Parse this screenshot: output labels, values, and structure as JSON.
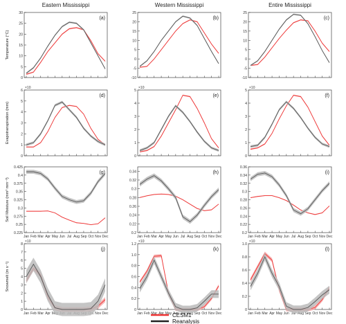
{
  "figure": {
    "legend": [
      {
        "label": "CESM1",
        "color": "#ee3333"
      },
      {
        "label": "Reanalysis",
        "color": "#222222"
      }
    ],
    "colors": {
      "cesm": "#ee3333",
      "cesm_band": "#f5a8a8",
      "rean": "#555555",
      "rean_band": "#bbbbbb",
      "axis": "#444444"
    }
  },
  "chart_data": [
    {
      "type": "line",
      "id": "a",
      "panel_label": "(a)",
      "title": "Eastern Mississippi",
      "ylabel": "Temperature (°C)",
      "exponent": "",
      "ylim": [
        0,
        30
      ],
      "yticks": [
        0,
        5,
        10,
        15,
        20,
        25,
        30
      ],
      "ytick_labels": [
        "0",
        "5",
        "10",
        "15",
        "20",
        "25",
        "30"
      ],
      "xticklabels": false,
      "series": [
        {
          "name": "CESM1",
          "values": [
            1.5,
            2.5,
            7,
            12,
            16,
            20,
            22.5,
            23,
            22,
            17,
            11,
            7.5
          ],
          "band": 0.3
        },
        {
          "name": "Reanalysis",
          "values": [
            2,
            4.5,
            9,
            14.5,
            19.5,
            23.5,
            25.5,
            25,
            22,
            16,
            10,
            4
          ],
          "band": 0.4
        }
      ]
    },
    {
      "type": "line",
      "id": "b",
      "panel_label": "(b)",
      "title": "Western Mississippi",
      "ylabel": "",
      "exponent": "",
      "ylim": [
        -10,
        25
      ],
      "yticks": [
        -10,
        -5,
        0,
        5,
        10,
        15,
        20,
        25
      ],
      "ytick_labels": [
        "-10",
        "-5",
        "0",
        "5",
        "10",
        "15",
        "20",
        "25"
      ],
      "xticklabels": false,
      "series": [
        {
          "name": "CESM1",
          "values": [
            -4.5,
            -4,
            0,
            5,
            10,
            15,
            19,
            21,
            20,
            14,
            8,
            3
          ],
          "band": 0.3
        },
        {
          "name": "Reanalysis",
          "values": [
            -4,
            -1,
            4,
            10,
            15,
            20,
            23,
            22,
            18,
            11,
            4,
            -2.5
          ],
          "band": 0.4
        }
      ]
    },
    {
      "type": "line",
      "id": "c",
      "panel_label": "(c)",
      "title": "Entire Mississippi",
      "ylabel": "",
      "exponent": "",
      "ylim": [
        -10,
        25
      ],
      "yticks": [
        -10,
        -5,
        0,
        5,
        10,
        15,
        20,
        25
      ],
      "ytick_labels": [
        "-10",
        "-5",
        "0",
        "5",
        "10",
        "15",
        "20",
        "25"
      ],
      "xticklabels": false,
      "series": [
        {
          "name": "CESM1",
          "values": [
            -3.5,
            -3,
            1,
            6,
            11,
            15.5,
            19.5,
            21,
            20.5,
            15,
            8.5,
            4
          ],
          "band": 0.3
        },
        {
          "name": "Reanalysis",
          "values": [
            -3.5,
            -1,
            4,
            10,
            16,
            21,
            24,
            23.5,
            19,
            12,
            4.5,
            -2
          ],
          "band": 0.4
        }
      ]
    },
    {
      "type": "line",
      "id": "d",
      "panel_label": "(d)",
      "title": "",
      "ylabel": "Evapotranspiration (mm)",
      "exponent": "×10",
      "ylim": [
        0,
        6
      ],
      "yticks": [
        0,
        1,
        2,
        3,
        4,
        5,
        6
      ],
      "ytick_labels": [
        "0",
        "1",
        "2",
        "3",
        "4",
        "5",
        "6"
      ],
      "xticklabels": false,
      "series": [
        {
          "name": "CESM1",
          "values": [
            0.8,
            0.8,
            1.2,
            2.2,
            3.5,
            4.4,
            4.6,
            4.5,
            3.8,
            2.5,
            1.5,
            1.0
          ],
          "band": 0.05
        },
        {
          "name": "Reanalysis",
          "values": [
            1.0,
            1.2,
            2.0,
            3.2,
            4.6,
            4.9,
            4.2,
            3.5,
            2.5,
            1.8,
            1.3,
            1.0
          ],
          "band": 0.12
        }
      ]
    },
    {
      "type": "line",
      "id": "e",
      "panel_label": "(e)",
      "title": "",
      "ylabel": "",
      "exponent": "×10",
      "ylim": [
        0,
        5
      ],
      "yticks": [
        0,
        1,
        2,
        3,
        4,
        5
      ],
      "ytick_labels": [
        "0",
        "1",
        "2",
        "3",
        "4",
        "5"
      ],
      "xticklabels": false,
      "series": [
        {
          "name": "CESM1",
          "values": [
            0.3,
            0.4,
            0.7,
            1.5,
            2.5,
            3.5,
            4.6,
            4.5,
            3.6,
            2.5,
            1.3,
            0.6
          ],
          "band": 0.05
        },
        {
          "name": "Reanalysis",
          "values": [
            0.4,
            0.6,
            1.0,
            2.0,
            3.0,
            3.8,
            3.3,
            2.6,
            1.8,
            1.1,
            0.6,
            0.4
          ],
          "band": 0.1
        }
      ]
    },
    {
      "type": "line",
      "id": "f",
      "panel_label": "(f)",
      "title": "",
      "ylabel": "",
      "exponent": "×10",
      "ylim": [
        0,
        5
      ],
      "yticks": [
        0,
        1,
        2,
        3,
        4,
        5
      ],
      "ytick_labels": [
        "0",
        "1",
        "2",
        "3",
        "4",
        "5"
      ],
      "xticklabels": false,
      "series": [
        {
          "name": "CESM1",
          "values": [
            0.5,
            0.6,
            0.9,
            1.7,
            2.8,
            3.8,
            4.6,
            4.5,
            3.7,
            2.6,
            1.5,
            0.8
          ],
          "band": 0.05
        },
        {
          "name": "Reanalysis",
          "values": [
            0.7,
            0.8,
            1.4,
            2.4,
            3.5,
            4.1,
            3.6,
            2.9,
            2.1,
            1.4,
            0.9,
            0.7
          ],
          "band": 0.1
        }
      ]
    },
    {
      "type": "line",
      "id": "g",
      "panel_label": "(g)",
      "title": "",
      "ylabel": "Soil Moisture (mm³ mm⁻³)",
      "exponent": "",
      "ylim": [
        0.225,
        0.425
      ],
      "yticks": [
        0.225,
        0.25,
        0.275,
        0.3,
        0.325,
        0.35,
        0.375,
        0.4,
        0.425
      ],
      "ytick_labels": [
        "0.225",
        "0.25",
        "0.275",
        "0.3",
        "0.325",
        "0.35",
        "0.375",
        "0.4",
        "0.425"
      ],
      "xticklabels": true,
      "series": [
        {
          "name": "CESM1",
          "values": [
            0.29,
            0.29,
            0.29,
            0.291,
            0.285,
            0.272,
            0.263,
            0.255,
            0.253,
            0.249,
            0.252,
            0.27
          ],
          "band": 0.001
        },
        {
          "name": "Reanalysis",
          "values": [
            0.41,
            0.41,
            0.405,
            0.388,
            0.36,
            0.335,
            0.325,
            0.318,
            0.322,
            0.345,
            0.38,
            0.405
          ],
          "band": 0.006
        }
      ]
    },
    {
      "type": "line",
      "id": "h",
      "panel_label": "(h)",
      "title": "",
      "ylabel": "",
      "exponent": "",
      "ylim": [
        0.2,
        0.35
      ],
      "yticks": [
        0.2,
        0.22,
        0.24,
        0.26,
        0.28,
        0.3,
        0.32,
        0.34
      ],
      "ytick_labels": [
        "0.2",
        "0.22",
        "0.24",
        "0.26",
        "0.28",
        "0.3",
        "0.32",
        "0.34"
      ],
      "xticklabels": true,
      "series": [
        {
          "name": "CESM1",
          "values": [
            0.28,
            0.284,
            0.287,
            0.288,
            0.287,
            0.283,
            0.275,
            0.265,
            0.255,
            0.25,
            0.252,
            0.265
          ],
          "band": 0.001
        },
        {
          "name": "Reanalysis",
          "values": [
            0.31,
            0.322,
            0.33,
            0.318,
            0.3,
            0.28,
            0.236,
            0.225,
            0.24,
            0.262,
            0.282,
            0.298
          ],
          "band": 0.005
        }
      ]
    },
    {
      "type": "line",
      "id": "i",
      "panel_label": "(i)",
      "title": "",
      "ylabel": "",
      "exponent": "",
      "ylim": [
        0.2,
        0.36
      ],
      "yticks": [
        0.2,
        0.22,
        0.24,
        0.26,
        0.28,
        0.3,
        0.32,
        0.34,
        0.36
      ],
      "ytick_labels": [
        "0.2",
        "0.22",
        "0.24",
        "0.26",
        "0.28",
        "0.3",
        "0.32",
        "0.34",
        "0.36"
      ],
      "xticklabels": true,
      "series": [
        {
          "name": "CESM1",
          "values": [
            0.285,
            0.288,
            0.29,
            0.29,
            0.285,
            0.278,
            0.267,
            0.255,
            0.248,
            0.244,
            0.248,
            0.265
          ],
          "band": 0.001
        },
        {
          "name": "Reanalysis",
          "values": [
            0.33,
            0.342,
            0.345,
            0.336,
            0.316,
            0.29,
            0.255,
            0.246,
            0.258,
            0.28,
            0.302,
            0.32
          ],
          "band": 0.005
        }
      ]
    },
    {
      "type": "line",
      "id": "j",
      "panel_label": "(j)",
      "title": "",
      "ylabel": "Snowmelt (m s⁻¹)",
      "exponent": "×10",
      "ylim": [
        0,
        8
      ],
      "yticks": [
        0,
        1,
        2,
        3,
        4,
        5,
        6,
        7,
        8
      ],
      "ytick_labels": [
        "0",
        "1",
        "2",
        "3",
        "4",
        "5",
        "6",
        "7",
        "8"
      ],
      "xticklabels": true,
      "series": [
        {
          "name": "CESM1",
          "values": [
            3.5,
            5.0,
            4.2,
            1.5,
            0.2,
            0.0,
            0.0,
            0.0,
            0.0,
            0.05,
            0.4,
            1.2
          ],
          "band": 0.3
        },
        {
          "name": "Reanalysis",
          "values": [
            4.0,
            5.5,
            4.0,
            1.8,
            0.2,
            0.0,
            0.0,
            0.0,
            0.0,
            0.1,
            1.0,
            3.0
          ],
          "band": 0.8
        }
      ]
    },
    {
      "type": "line",
      "id": "k",
      "panel_label": "(k)",
      "title": "",
      "ylabel": "",
      "exponent": "×10",
      "ylim": [
        0,
        1.2
      ],
      "yticks": [
        0,
        0.2,
        0.4,
        0.6,
        0.8,
        1.0,
        1.2
      ],
      "ytick_labels": [
        "0",
        "0.2",
        "0.4",
        "0.6",
        "0.8",
        "1.0",
        "1.2"
      ],
      "xticklabels": true,
      "series": [
        {
          "name": "CESM1",
          "values": [
            0.5,
            0.7,
            0.97,
            0.98,
            0.3,
            0.0,
            0.0,
            0.0,
            0.0,
            0.05,
            0.2,
            0.43
          ],
          "band": 0.03
        },
        {
          "name": "Reanalysis",
          "values": [
            0.38,
            0.6,
            0.9,
            0.6,
            0.3,
            0.05,
            0.0,
            0.0,
            0.03,
            0.15,
            0.28,
            0.28
          ],
          "band": 0.07
        }
      ]
    },
    {
      "type": "line",
      "id": "l",
      "panel_label": "(l)",
      "title": "",
      "ylabel": "",
      "exponent": "×10",
      "ylim": [
        0,
        1.0
      ],
      "yticks": [
        0,
        0.2,
        0.4,
        0.6,
        0.8,
        1.0
      ],
      "ytick_labels": [
        "0",
        "0.2",
        "0.4",
        "0.6",
        "0.8",
        "1.0"
      ],
      "xticklabels": true,
      "series": [
        {
          "name": "CESM1",
          "values": [
            0.45,
            0.65,
            0.85,
            0.75,
            0.3,
            0.0,
            0.0,
            0.0,
            0.0,
            0.03,
            0.15,
            0.33
          ],
          "band": 0.03
        },
        {
          "name": "Reanalysis",
          "values": [
            0.35,
            0.55,
            0.8,
            0.55,
            0.35,
            0.05,
            0.0,
            0.0,
            0.03,
            0.12,
            0.22,
            0.3
          ],
          "band": 0.06
        }
      ]
    }
  ],
  "months": [
    "Jan",
    "Feb",
    "Mar",
    "Apr",
    "May",
    "Jun",
    "Jul",
    "Aug",
    "Sep",
    "Oct",
    "Nov",
    "Dec"
  ]
}
